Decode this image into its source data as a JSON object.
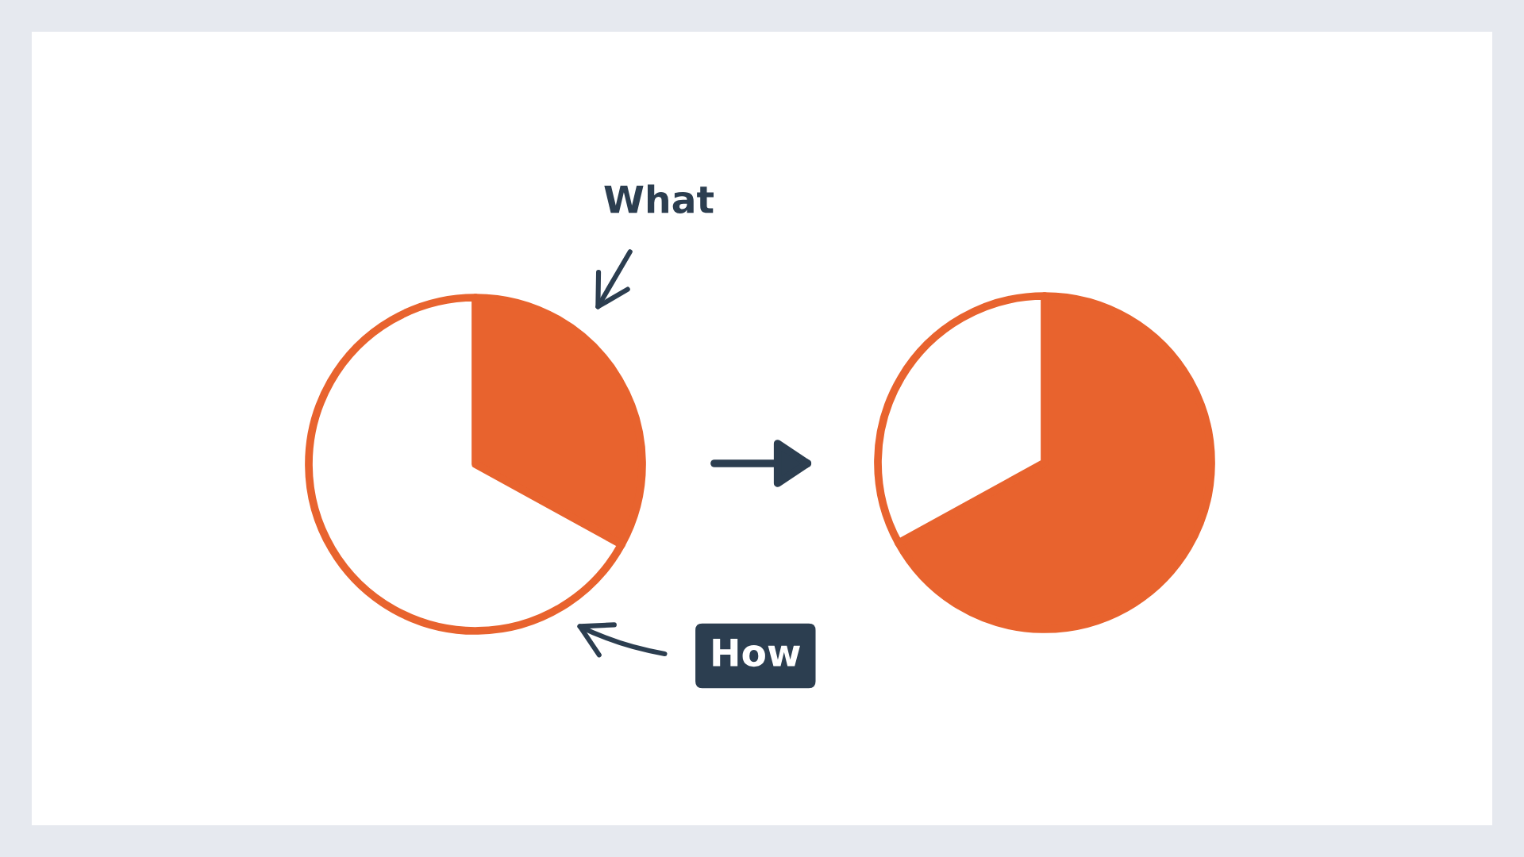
{
  "chart_data": [
    {
      "type": "pie",
      "categories": [
        null,
        null
      ],
      "values": [
        33,
        67
      ],
      "colors": [
        "#e8632e",
        "#ffffff"
      ],
      "annotations": [
        "What",
        "How"
      ]
    },
    {
      "type": "pie",
      "categories": [
        null,
        null
      ],
      "values": [
        67,
        33
      ],
      "colors": [
        "#e8632e",
        "#ffffff"
      ]
    }
  ]
}
